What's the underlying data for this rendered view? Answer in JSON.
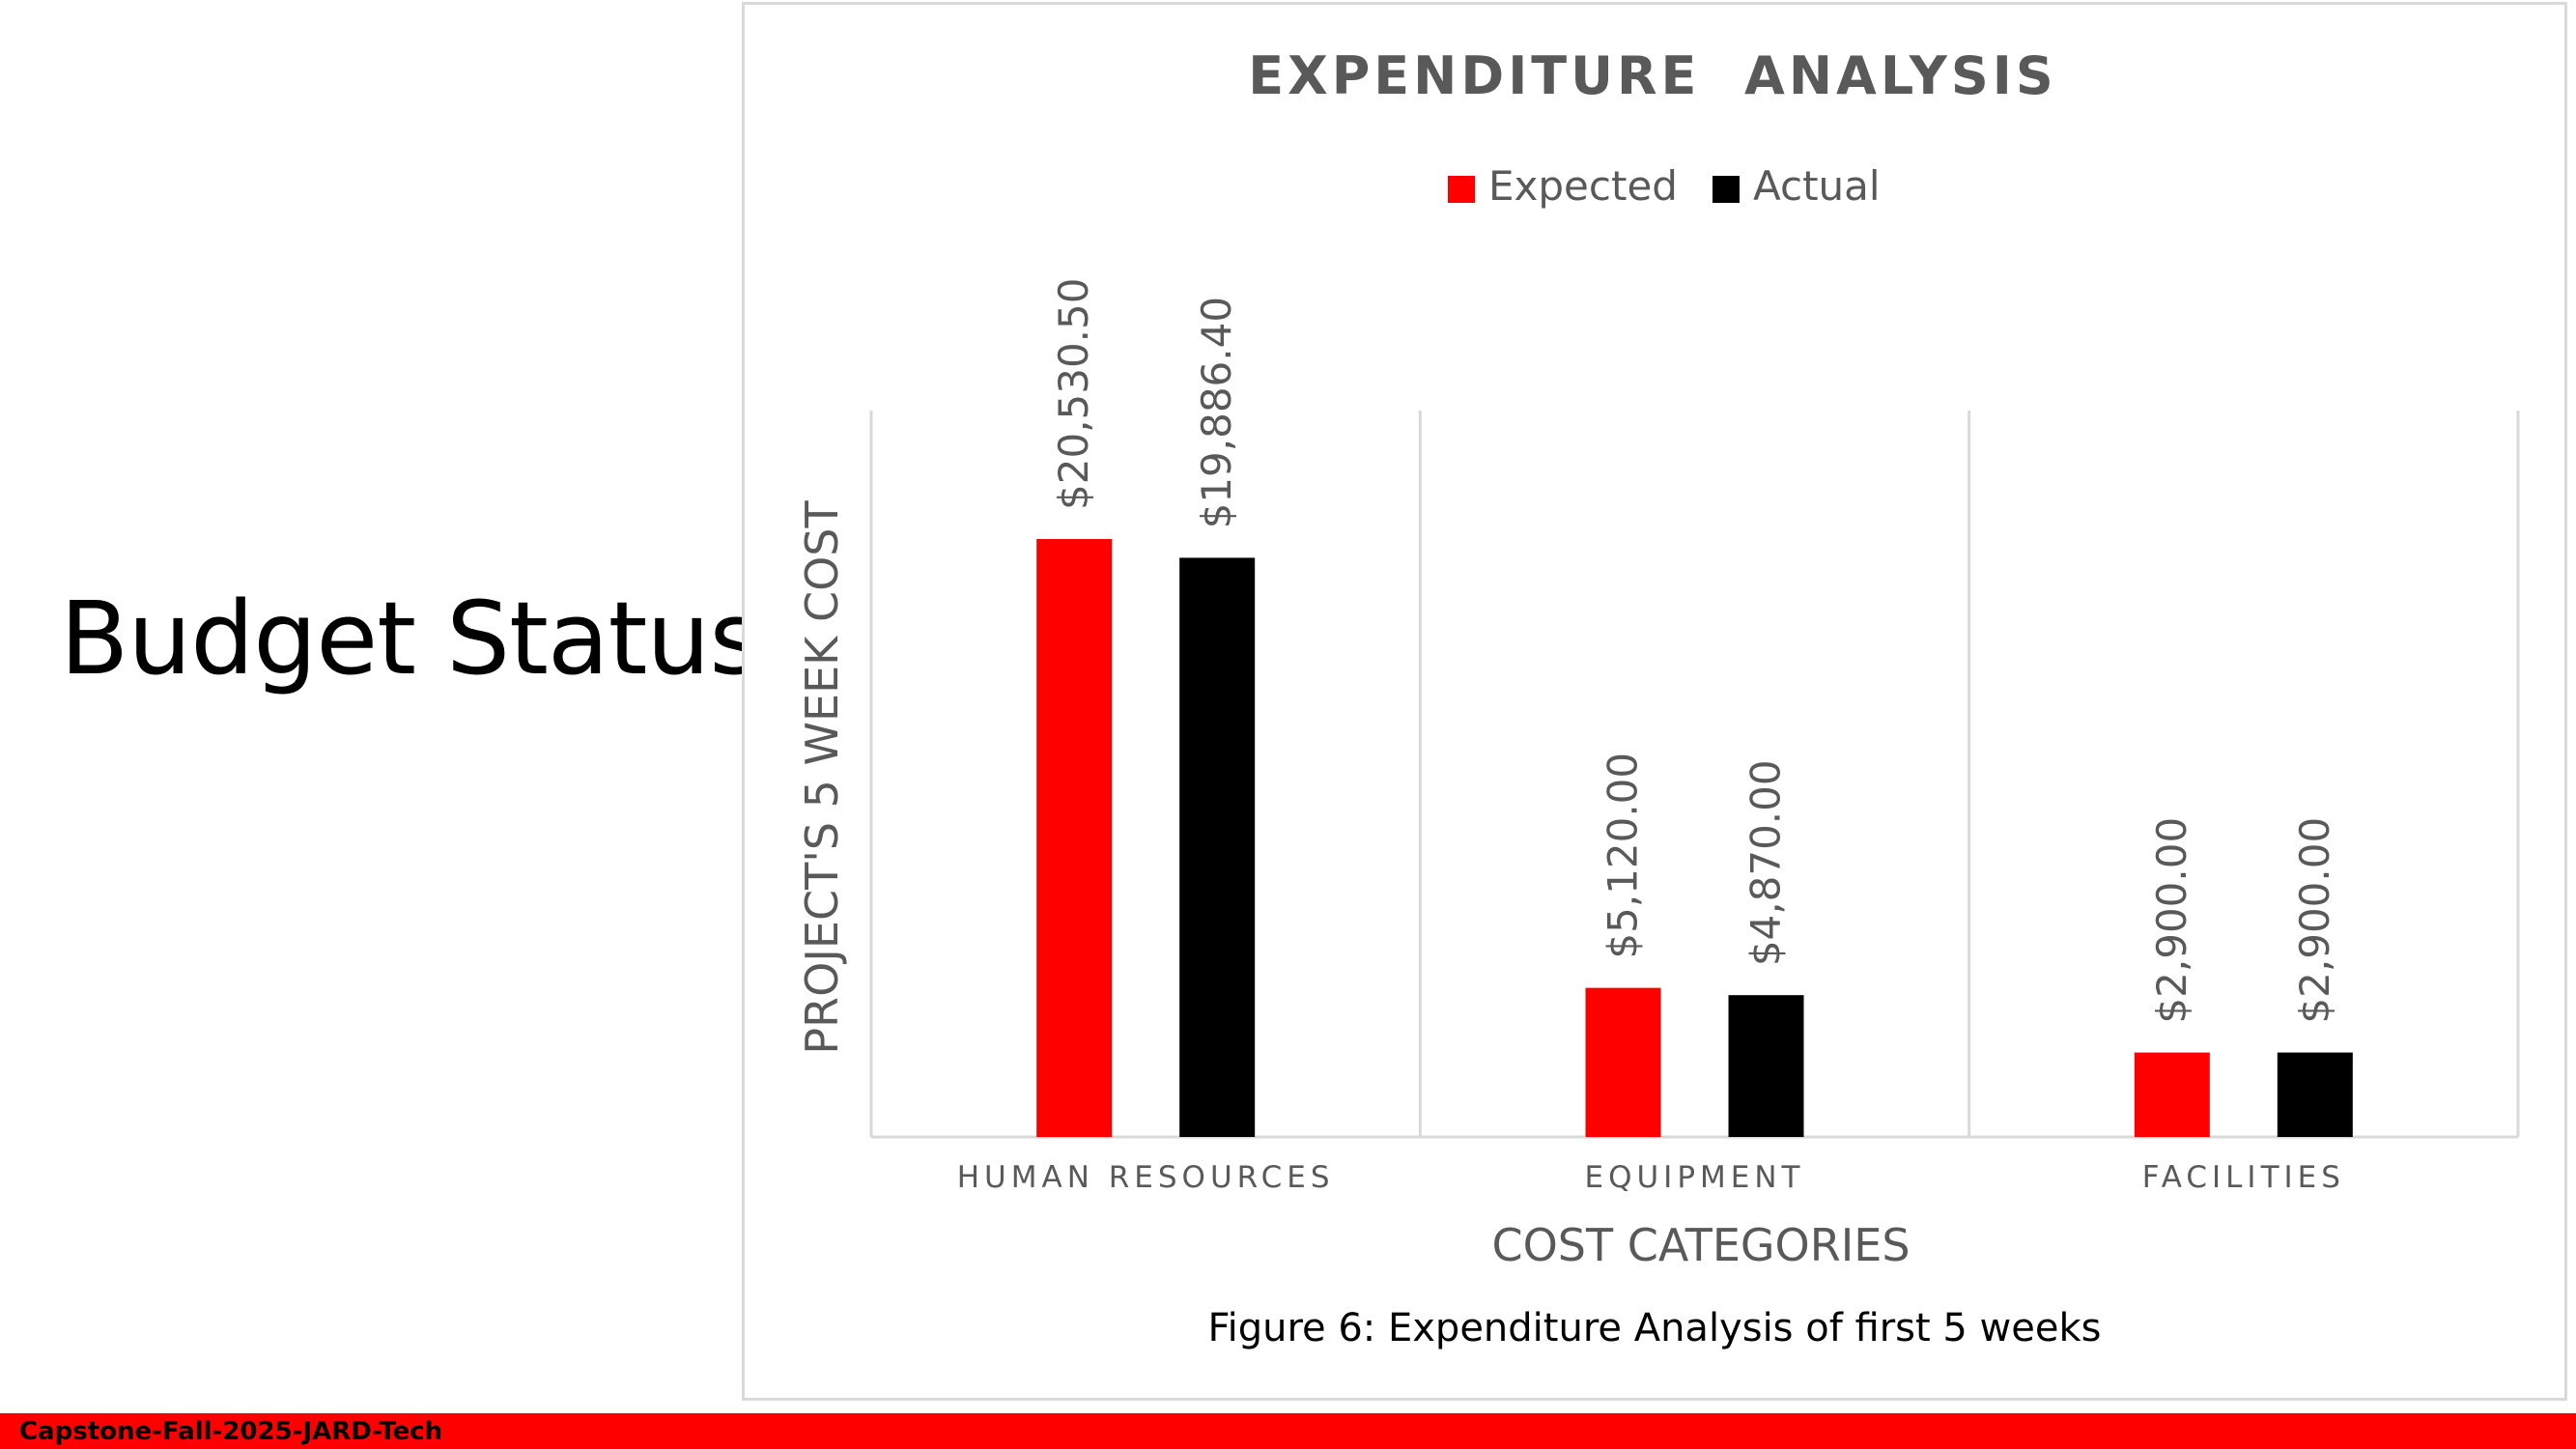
{
  "slide": {
    "title": "Budget Status",
    "figure_caption": "Figure 6: Expenditure Analysis of first 5 weeks",
    "footer": "Capstone-Fall-2025-JARD-Tech"
  },
  "colors": {
    "expected": "#ff0000",
    "actual": "#000000",
    "footer_bar": "#ff0000",
    "axis_text": "#595959",
    "gridline": "#d9d9d9"
  },
  "chart_data": {
    "type": "bar",
    "title": "EXPENDITURE  ANALYSIS",
    "xlabel": "COST CATEGORIES",
    "ylabel": "PROJECT'S 5 WEEK COST",
    "categories": [
      "HUMAN RESOURCES",
      "EQUIPMENT",
      "FACILITIES"
    ],
    "series": [
      {
        "name": "Expected",
        "values": [
          20530.5,
          5120.0,
          2900.0
        ],
        "labels": [
          "$20,530.50",
          "$5,120.00",
          "$2,900.00"
        ]
      },
      {
        "name": "Actual",
        "values": [
          19886.4,
          4870.0,
          2900.0
        ],
        "labels": [
          "$19,886.40",
          "$4,870.00",
          "$2,900.00"
        ]
      }
    ],
    "ylim": [
      0,
      25000
    ],
    "grid": "vertical category separators",
    "legend": "top-center",
    "data_labels": "rotated vertical above bars"
  }
}
